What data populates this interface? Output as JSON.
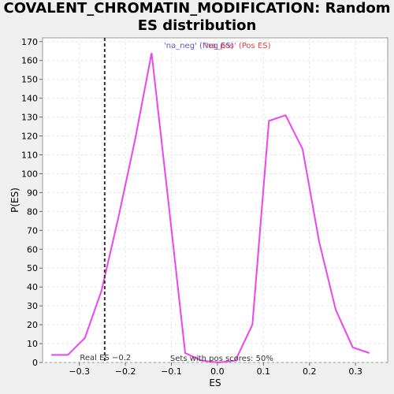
{
  "chart_data": {
    "type": "line",
    "title": "COVALENT_CHROMATIN_MODIFICATION: Random ES distribution",
    "xlabel": "ES",
    "ylabel": "P(ES)",
    "xlim": [
      -0.38,
      0.37
    ],
    "ylim": [
      0,
      172
    ],
    "xticks": [
      -0.3,
      -0.2,
      -0.1,
      0.0,
      0.1,
      0.2,
      0.3
    ],
    "xtick_labels": [
      "−0.3",
      "−0.2",
      "−0.1",
      "0.0",
      "0.1",
      "0.2",
      "0.3"
    ],
    "yticks": [
      0,
      10,
      20,
      30,
      40,
      50,
      60,
      70,
      80,
      90,
      100,
      110,
      120,
      130,
      140,
      150,
      160,
      170
    ],
    "ytick_labels": [
      "0",
      "10",
      "20",
      "30",
      "40",
      "50",
      "60",
      "70",
      "80",
      "90",
      "100",
      "110",
      "120",
      "130",
      "140",
      "150",
      "160",
      "170"
    ],
    "grid": true,
    "series": [
      {
        "color": "#ee44ee",
        "x": [
          -0.361,
          -0.325,
          -0.288,
          -0.252,
          -0.216,
          -0.179,
          -0.143,
          -0.106,
          -0.07,
          -0.034,
          0.003,
          0.039,
          0.076,
          0.112,
          0.148,
          0.185,
          0.221,
          0.257,
          0.294,
          0.33
        ],
        "y": [
          4,
          4,
          13,
          38,
          76,
          118,
          164,
          84,
          5,
          1,
          0,
          1,
          20,
          128,
          131,
          113,
          64,
          28,
          8,
          5
        ]
      }
    ],
    "real_es": {
      "x": -0.245,
      "label": "Real ES −0.2"
    },
    "legend": {
      "placement": "top",
      "entries": [
        {
          "text": "'na_neg' (Neg ES)",
          "color": "#5555cc"
        },
        {
          "text": "'na_pos' (Pos ES)",
          "color": "#dd4444"
        }
      ]
    },
    "annotation": "Sets with pos scores: 50%"
  }
}
